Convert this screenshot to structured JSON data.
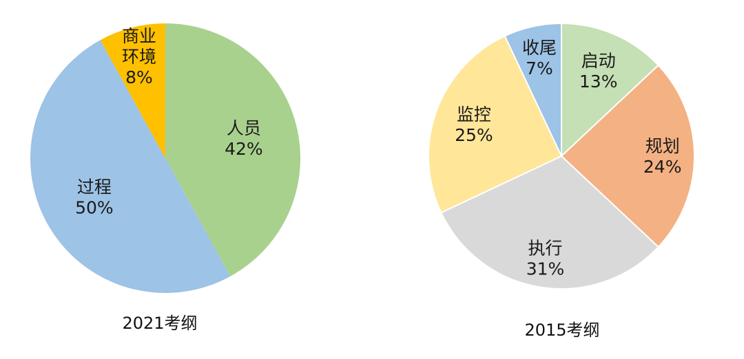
{
  "chart_data": [
    {
      "type": "pie",
      "title": "2021考纲",
      "start_angle_deg": 0,
      "direction": "clockwise",
      "slices": [
        {
          "category": "人员",
          "value": 42,
          "value_label": "42%",
          "color": "#a9d18e"
        },
        {
          "category": "过程",
          "value": 50,
          "value_label": "50%",
          "color": "#9dc3e6"
        },
        {
          "category": "商业\n环境",
          "value": 8,
          "value_label": "8%",
          "color": "#ffc000"
        }
      ]
    },
    {
      "type": "pie",
      "title": "2015考纲",
      "start_angle_deg": 0,
      "direction": "clockwise",
      "slices": [
        {
          "category": "启动",
          "value": 13,
          "value_label": "13%",
          "color": "#c5e0b4"
        },
        {
          "category": "规划",
          "value": 24,
          "value_label": "24%",
          "color": "#f4b183"
        },
        {
          "category": "执行",
          "value": 31,
          "value_label": "31%",
          "color": "#d9d9d9"
        },
        {
          "category": "监控",
          "value": 25,
          "value_label": "25%",
          "color": "#ffe699"
        },
        {
          "category": "收尾",
          "value": 7,
          "value_label": "7%",
          "color": "#9dc3e6"
        }
      ]
    }
  ]
}
